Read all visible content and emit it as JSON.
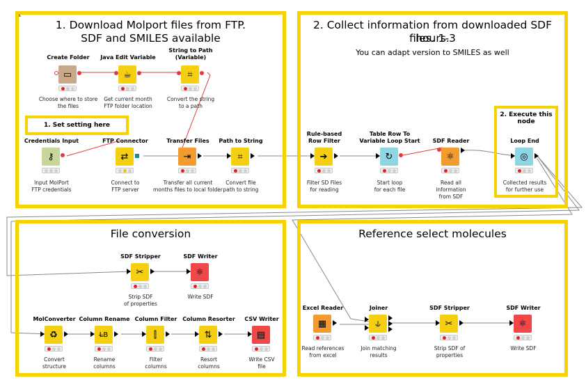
{
  "annotations": {
    "download": {
      "title_line1": "1. Download Molport files from FTP.",
      "title_line2": "SDF and SMILES available"
    },
    "collect": {
      "title_line1": "2. Collect information from downloaded SDF files. 1-3",
      "title_line2": "hours.",
      "subtitle": "You can adapt version to SMILES as well"
    },
    "conversion": {
      "title": "File conversion"
    },
    "reference": {
      "title": "Reference select molecules"
    },
    "setting_note": "1. Set setting here",
    "execute_note_line1": "2. Execute this",
    "execute_note_line2": "node"
  },
  "nodes": {
    "create_folder": {
      "title": "Create Folder",
      "desc1": "Choose where to store",
      "desc2": "the files",
      "icon": "folder-icon",
      "color": "#c9a789"
    },
    "java_edit_variable": {
      "title": "Java Edit Variable",
      "desc1": "Get current month",
      "desc2": "FTP folder location",
      "icon": "java-icon",
      "color": "#f5cf12"
    },
    "string_to_path": {
      "title1": "String to Path",
      "title2": "(Variable)",
      "desc1": "Convert the string",
      "desc2": "to a path",
      "icon": "path-icon",
      "color": "#f5cf12"
    },
    "credentials_input": {
      "title": "Credentials Input",
      "desc1": "Input MolPort",
      "desc2": "FTP credentials",
      "icon": "key-icon",
      "color": "#c9d69a"
    },
    "ftp_connector": {
      "title": "FTP Connector",
      "desc1": "Connect to",
      "desc2": "FTP server",
      "icon": "ftp-icon",
      "color": "#f5cf12"
    },
    "transfer_files": {
      "title": "Transfer Files",
      "desc1": "Transfer all current",
      "desc2": "months files to local folder",
      "icon": "transfer-icon",
      "color": "#f39b2e"
    },
    "path_to_string": {
      "title": "Path to String",
      "desc1": "Convert file",
      "desc2": "path to string",
      "icon": "path-string-icon",
      "color": "#f5cf12"
    },
    "rule_based_row_filter": {
      "title1": "Rule-based",
      "title2": "Row Filter",
      "desc1": "Filter SD Files",
      "desc2": "for reading",
      "icon": "filter-arrow-icon",
      "color": "#f5cf12"
    },
    "table_row_to_variable_loop_start": {
      "title1": "Table Row To",
      "title2": "Variable Loop Start",
      "desc1": "Start loop",
      "desc2": "for each file",
      "icon": "loop-start-icon",
      "color": "#90d5e3"
    },
    "sdf_reader": {
      "title": "SDF Reader",
      "desc1": "Read all",
      "desc2": "information",
      "desc3": "from SDF",
      "icon": "sdf-reader-icon",
      "color": "#f39b2e"
    },
    "loop_end": {
      "title": "Loop End",
      "desc1": "Collected results",
      "desc2": "for further use",
      "icon": "loop-end-icon",
      "color": "#90d5e3"
    },
    "sdf_stripper_1": {
      "title": "SDF Stripper",
      "desc1": "Strip SDF",
      "desc2": "of properties",
      "icon": "stripper-icon",
      "color": "#f5cf12"
    },
    "sdf_writer_1": {
      "title": "SDF Writer",
      "desc1": "Write SDF",
      "icon": "sdf-writer-icon",
      "color": "#f04848"
    },
    "molconverter": {
      "title": "MolConverter",
      "desc1": "Convert",
      "desc2": "structure",
      "icon": "convert-icon",
      "color": "#f5cf12"
    },
    "column_rename": {
      "title": "Column Rename",
      "desc1": "Rename",
      "desc2": "columns",
      "icon": "rename-icon",
      "color": "#f5cf12"
    },
    "column_filter": {
      "title": "Column Filter",
      "desc1": "Filter",
      "desc2": "columns",
      "icon": "column-filter-icon",
      "color": "#f5cf12"
    },
    "column_resorter": {
      "title": "Column Resorter",
      "desc1": "Resort",
      "desc2": "columns",
      "icon": "resorter-icon",
      "color": "#f5cf12"
    },
    "csv_writer": {
      "title": "CSV Writer",
      "desc1": "Write CSV",
      "desc2": "file",
      "icon": "csv-writer-icon",
      "color": "#f04848"
    },
    "excel_reader": {
      "title": "Excel Reader",
      "desc1": "Read references",
      "desc2": "from excel",
      "icon": "excel-icon",
      "color": "#f39b2e"
    },
    "joiner": {
      "title": "Joiner",
      "desc1": "Join matching",
      "desc2": "results",
      "icon": "joiner-icon",
      "color": "#f5cf12"
    },
    "sdf_stripper_2": {
      "title": "SDF Stripper",
      "desc1": "Strip SDF of",
      "desc2": "properties",
      "icon": "stripper-icon",
      "color": "#f5cf12"
    },
    "sdf_writer_2": {
      "title": "SDF Writer",
      "desc1": "Write SDF",
      "icon": "sdf-writer-icon",
      "color": "#f04848"
    }
  },
  "colors": {
    "annotation_border": "#f6d200",
    "connection": "#888888",
    "flow_variable": "#e23b3b"
  }
}
